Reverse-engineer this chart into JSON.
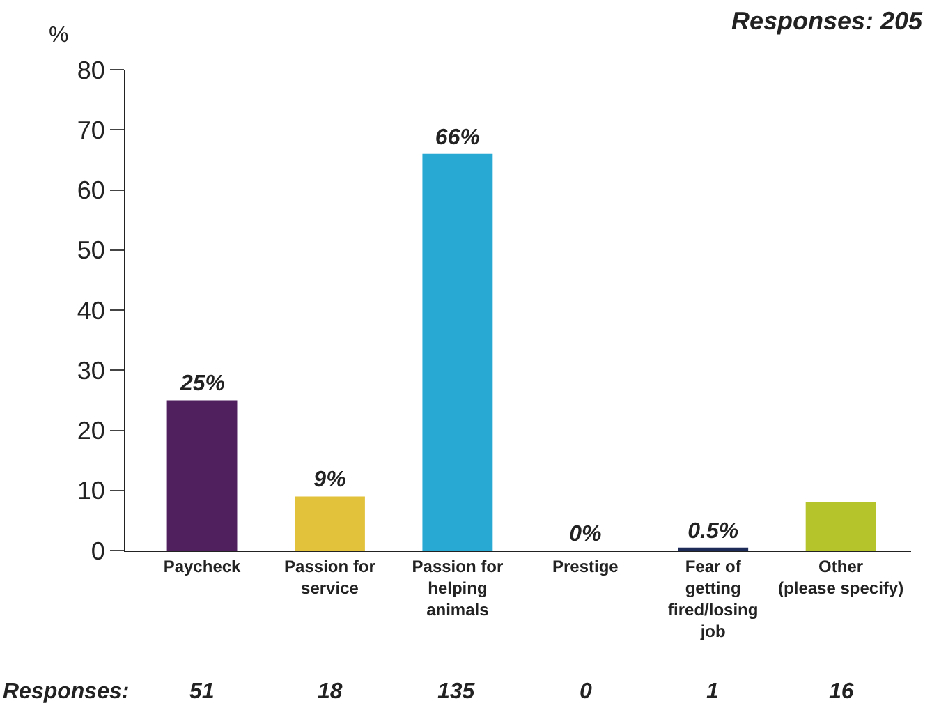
{
  "chart_data": {
    "type": "bar",
    "ylabel": "%",
    "categories": [
      "Paycheck",
      "Passion for\nservice",
      "Passion for\nhelping\nanimals",
      "Prestige",
      "Fear of\ngetting\nfired/losing\njob",
      "Other\n(please specify)"
    ],
    "values": [
      25,
      9,
      66,
      0,
      0.5,
      8
    ],
    "colors": [
      "#4f1f5e",
      "#e2c23b",
      "#27a9d4",
      "#c8781c",
      "#1c2b58",
      "#b5c42a"
    ],
    "value_labels": [
      "25%",
      "9%",
      "66%",
      "0%",
      "0.5%",
      null
    ],
    "ylim": [
      0,
      80
    ],
    "yticks": [
      0,
      10,
      20,
      30,
      40,
      50,
      60,
      70,
      80
    ],
    "legend": false,
    "annotations": [
      "Responses: 205",
      "Responses:",
      "51",
      "18",
      "135",
      "0",
      "1",
      "16"
    ]
  }
}
